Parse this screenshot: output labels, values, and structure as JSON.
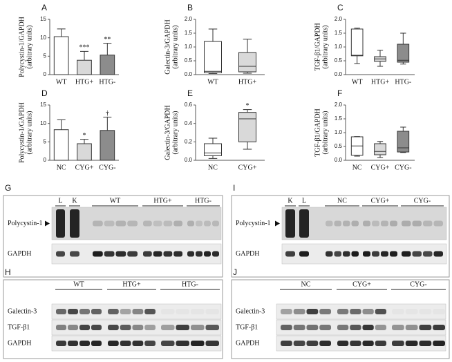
{
  "chart_data": [
    {
      "type": "bar",
      "panel": "A",
      "ylabel": [
        "Polycystin-1/GAPDH",
        "(arbitrary units)"
      ],
      "categories": [
        "WT",
        "HTG+",
        "HTG-"
      ],
      "values": [
        10.3,
        3.9,
        5.3
      ],
      "errors": [
        2.1,
        2.4,
        3.2
      ],
      "colors": [
        "#ffffff",
        "#d9d9d9",
        "#8c8c8c"
      ],
      "annotations": [
        null,
        "***",
        "**"
      ],
      "ylim": [
        0,
        15
      ],
      "yticks": [
        0,
        5,
        10,
        15
      ]
    },
    {
      "type": "box",
      "panel": "B",
      "ylabel": [
        "Galectin-3/GAPDH",
        "(arbitrary units)"
      ],
      "categories": [
        "WT",
        "HTG+"
      ],
      "boxes": [
        {
          "min": 0.04,
          "q1": 0.07,
          "median": 0.12,
          "q3": 1.2,
          "max": 1.65
        },
        {
          "min": 0.05,
          "q1": 0.1,
          "median": 0.3,
          "q3": 0.8,
          "max": 1.28
        }
      ],
      "colors": [
        "#ffffff",
        "#d9d9d9"
      ],
      "ylim": [
        0,
        2
      ],
      "yticks": [
        {
          "value": 0,
          "label": "0.0"
        },
        0.5,
        {
          "value": 1,
          "label": "1.0"
        },
        1.5,
        {
          "value": 2,
          "label": "2.0"
        }
      ]
    },
    {
      "type": "box",
      "panel": "C",
      "ylabel": [
        "TGF-β1/GAPDH",
        "(arbitrary units)"
      ],
      "categories": [
        "WT",
        "HTG+",
        "HTG-"
      ],
      "boxes": [
        {
          "min": 0.4,
          "q1": 0.68,
          "median": 0.7,
          "q3": 1.65,
          "max": 1.68
        },
        {
          "min": 0.3,
          "q1": 0.48,
          "median": 0.57,
          "q3": 0.65,
          "max": 0.88
        },
        {
          "min": 0.38,
          "q1": 0.45,
          "median": 0.52,
          "q3": 1.1,
          "max": 1.5
        }
      ],
      "colors": [
        "#ffffff",
        "#d9d9d9",
        "#8c8c8c"
      ],
      "ylim": [
        0,
        2
      ],
      "yticks": [
        {
          "value": 0,
          "label": "0.0"
        },
        0.5,
        {
          "value": 1,
          "label": "1.0"
        },
        1.5,
        {
          "value": 2,
          "label": "2.0"
        }
      ]
    },
    {
      "type": "bar",
      "panel": "D",
      "ylabel": [
        "Polycystin-1/GAPDH",
        "(arbitrary units)"
      ],
      "categories": [
        "NC",
        "CYG+",
        "CYG-"
      ],
      "values": [
        8.3,
        4.5,
        8.1
      ],
      "errors": [
        2.7,
        1.2,
        3.6
      ],
      "colors": [
        "#ffffff",
        "#d9d9d9",
        "#8c8c8c"
      ],
      "annotations": [
        null,
        "*",
        "†"
      ],
      "ylim": [
        0,
        15
      ],
      "yticks": [
        0,
        5,
        10,
        15
      ]
    },
    {
      "type": "box",
      "panel": "E",
      "ylabel": [
        "Galectin-3/GAPDH",
        "(arbitrary units)"
      ],
      "categories": [
        "NC",
        "CYG+"
      ],
      "boxes": [
        {
          "min": 0.02,
          "q1": 0.05,
          "median": 0.08,
          "q3": 0.18,
          "max": 0.24
        },
        {
          "min": 0.12,
          "q1": 0.2,
          "median": 0.45,
          "q3": 0.52,
          "max": 0.55
        }
      ],
      "colors": [
        "#ffffff",
        "#d9d9d9"
      ],
      "annotations": [
        null,
        "*"
      ],
      "ylim": [
        0,
        0.6
      ],
      "yticks": [
        {
          "value": 0,
          "label": "0.0"
        },
        0.2,
        0.4,
        0.6
      ]
    },
    {
      "type": "box",
      "panel": "F",
      "ylabel": [
        "TGF-β1/GAPDH",
        "(arbitrary units)"
      ],
      "categories": [
        "NC",
        "CYG+",
        "CYG-"
      ],
      "boxes": [
        {
          "min": 0.15,
          "q1": 0.18,
          "median": 0.52,
          "q3": 0.85,
          "max": 0.86
        },
        {
          "min": 0.1,
          "q1": 0.2,
          "median": 0.32,
          "q3": 0.6,
          "max": 0.68
        },
        {
          "min": 0.28,
          "q1": 0.3,
          "median": 0.45,
          "q3": 1.05,
          "max": 1.2
        }
      ],
      "colors": [
        "#ffffff",
        "#d9d9d9",
        "#8c8c8c"
      ],
      "ylim": [
        0,
        2
      ],
      "yticks": [
        {
          "value": 0,
          "label": "0.0"
        },
        0.5,
        {
          "value": 1,
          "label": "1.0"
        },
        1.5,
        {
          "value": 2,
          "label": "2.0"
        }
      ]
    }
  ],
  "blots": [
    {
      "panel": "G",
      "lanes": [
        "L",
        "K",
        "WT",
        "HTG+",
        "HTG-"
      ],
      "rows": [
        "Polycystin-1",
        "GAPDH"
      ]
    },
    {
      "panel": "I",
      "lanes": [
        "K",
        "L",
        "NC",
        "CYG+",
        "CYG-"
      ],
      "rows": [
        "Polycystin-1",
        "GAPDH"
      ]
    },
    {
      "panel": "H",
      "lanes": [
        "WT",
        "HTG+",
        "HTG-"
      ],
      "rows": [
        "Galectin-3",
        "TGF-β1",
        "GAPDH"
      ]
    },
    {
      "panel": "J",
      "lanes": [
        "NC",
        "CYG+",
        "CYG-"
      ],
      "rows": [
        "Galectin-3",
        "TGF-β1",
        "GAPDH"
      ]
    }
  ]
}
